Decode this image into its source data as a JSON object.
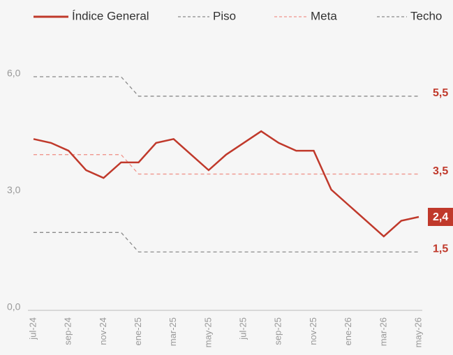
{
  "chart_data": {
    "type": "line",
    "categories": [
      "jul-24",
      null,
      "sep-24",
      null,
      "nov-24",
      null,
      "ene-25",
      null,
      "mar-25",
      null,
      "may-25",
      null,
      "jul-25",
      null,
      "sep-25",
      null,
      "nov-25",
      null,
      "ene-26",
      null,
      "mar-26",
      null,
      "may-26"
    ],
    "ylim": [
      0,
      6
    ],
    "yticks": [
      {
        "value": 0,
        "label": "0,0"
      },
      {
        "value": 3,
        "label": "3,0"
      },
      {
        "value": 6,
        "label": "6,0"
      }
    ],
    "series": [
      {
        "name": "Índice General",
        "color": "#c0392b",
        "dash": "solid",
        "values": [
          4.4,
          4.3,
          4.1,
          3.6,
          3.4,
          3.8,
          3.8,
          4.3,
          4.4,
          4.0,
          3.6,
          4.0,
          4.3,
          4.6,
          4.3,
          4.1,
          4.1,
          3.1,
          2.7,
          2.3,
          1.9,
          2.3,
          2.4
        ],
        "value_labels": [
          null,
          null,
          null,
          null,
          null,
          null,
          null,
          null,
          null,
          null,
          null,
          null,
          null,
          null,
          null,
          null,
          null,
          null,
          null,
          null,
          null,
          null,
          "2,4"
        ]
      },
      {
        "name": "Piso",
        "color": "#8a8a8a",
        "dash": "dashed",
        "values": [
          2.0,
          2.0,
          2.0,
          2.0,
          2.0,
          2.0,
          1.5,
          1.5,
          1.5,
          1.5,
          1.5,
          1.5,
          1.5,
          1.5,
          1.5,
          1.5,
          1.5,
          1.5,
          1.5,
          1.5,
          1.5,
          1.5,
          1.5
        ],
        "value_labels": [
          null,
          null,
          null,
          null,
          null,
          null,
          null,
          null,
          null,
          null,
          null,
          null,
          null,
          null,
          null,
          null,
          null,
          null,
          null,
          null,
          null,
          null,
          "1,5"
        ]
      },
      {
        "name": "Meta",
        "color": "#f0958c",
        "dash": "dashed",
        "values": [
          4.0,
          4.0,
          4.0,
          4.0,
          4.0,
          4.0,
          3.5,
          3.5,
          3.5,
          3.5,
          3.5,
          3.5,
          3.5,
          3.5,
          3.5,
          3.5,
          3.5,
          3.5,
          3.5,
          3.5,
          3.5,
          3.5,
          3.5
        ],
        "value_labels": [
          null,
          null,
          null,
          null,
          null,
          null,
          null,
          null,
          null,
          null,
          null,
          null,
          null,
          null,
          null,
          null,
          null,
          null,
          null,
          null,
          null,
          null,
          "3,5"
        ]
      },
      {
        "name": "Techo",
        "color": "#8a8a8a",
        "dash": "dashed",
        "values": [
          6.0,
          6.0,
          6.0,
          6.0,
          6.0,
          6.0,
          5.5,
          5.5,
          5.5,
          5.5,
          5.5,
          5.5,
          5.5,
          5.5,
          5.5,
          5.5,
          5.5,
          5.5,
          5.5,
          5.5,
          5.5,
          5.5,
          5.5
        ],
        "value_labels": [
          null,
          null,
          null,
          null,
          null,
          null,
          null,
          null,
          null,
          null,
          null,
          null,
          null,
          null,
          null,
          null,
          null,
          null,
          null,
          null,
          null,
          null,
          "5,5"
        ]
      }
    ],
    "legend": "top"
  }
}
